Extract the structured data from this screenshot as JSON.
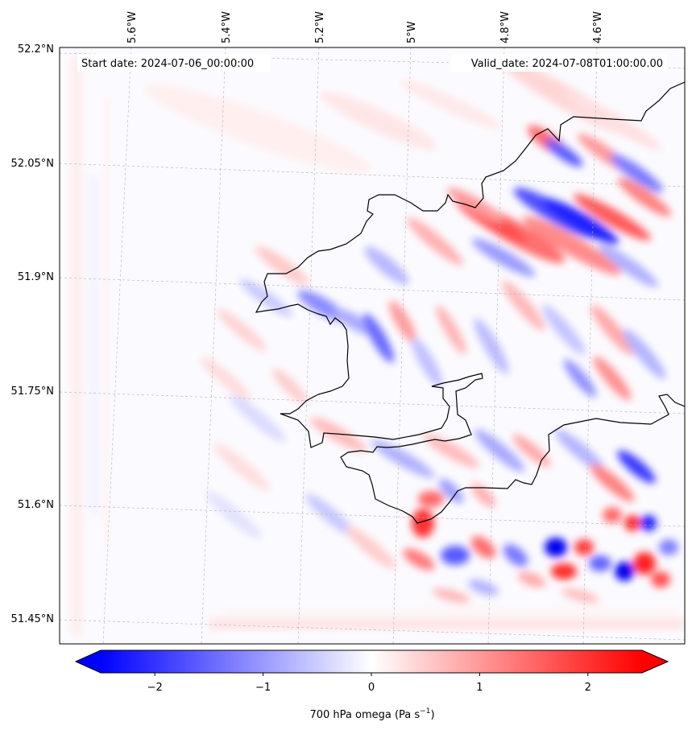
{
  "map": {
    "start_label": "Start date: 2024-07-06_00:00:00",
    "valid_label": "Valid_date: 2024-07-08T01:00:00.00",
    "lat_labels": [
      "52.2°N",
      "52.05°N",
      "51.9°N",
      "51.75°N",
      "51.6°N",
      "51.45°N"
    ],
    "lon_labels": [
      "5.6°W",
      "5.4°W",
      "5.2°W",
      "5°W",
      "4.8°W",
      "4.6°W"
    ],
    "colorbar": {
      "ticks": [
        "−2",
        "−1",
        "0",
        "1",
        "2"
      ],
      "tick_values": [
        -2,
        -1,
        0,
        1,
        2
      ],
      "range": [
        -2.5,
        2.5
      ],
      "extend": "both",
      "label_main": "700 hPa omega (Pa s",
      "label_sup": "−1",
      "label_end": ")",
      "cmap": "bwr",
      "negative_color": "#0000ff",
      "zero_color": "#ffffff",
      "positive_color": "#ff0000"
    },
    "gridlines": true,
    "coastline_color": "#000000"
  }
}
